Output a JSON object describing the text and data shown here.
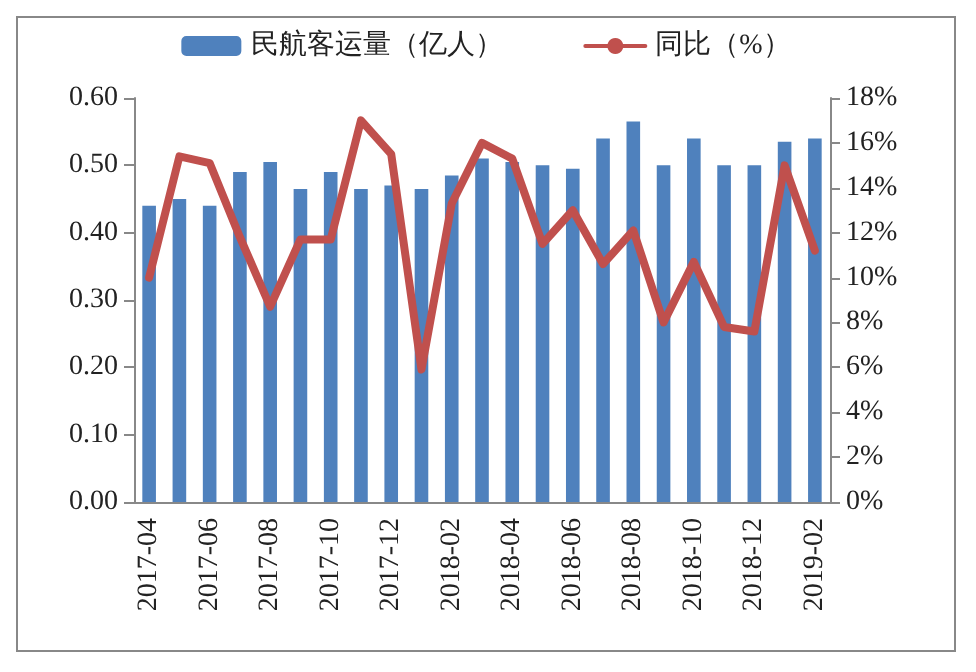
{
  "chart_data": {
    "type": "bar",
    "categories": [
      "2017-04",
      null,
      "2017-06",
      null,
      "2017-08",
      null,
      "2017-10",
      null,
      "2017-12",
      null,
      "2018-02",
      null,
      "2018-04",
      null,
      "2018-06",
      null,
      "2018-08",
      null,
      "2018-10",
      null,
      "2018-12",
      null,
      "2019-02"
    ],
    "series": [
      {
        "name": "民航客运量（亿人）",
        "color": "#4f81bd",
        "values": [
          0.44,
          0.45,
          0.44,
          0.49,
          0.505,
          0.465,
          0.49,
          0.465,
          0.47,
          0.465,
          0.485,
          0.51,
          0.505,
          0.5,
          0.495,
          0.54,
          0.565,
          0.5,
          0.54,
          0.5,
          0.5,
          0.535,
          0.54
        ]
      },
      {
        "name": "同比（%）",
        "type": "line",
        "axis": "y2",
        "color": "#c0504d",
        "values": [
          10.0,
          15.4,
          15.1,
          11.8,
          8.7,
          11.7,
          11.7,
          17.0,
          15.5,
          5.9,
          13.3,
          16.0,
          15.3,
          11.5,
          13.0,
          10.6,
          12.1,
          8.0,
          10.7,
          7.8,
          7.6,
          15.0,
          11.2
        ]
      }
    ],
    "ylim": [
      0,
      0.6
    ],
    "yticks": [
      {
        "value": 0,
        "label": "0.00"
      },
      {
        "value": 0.1,
        "label": "0.10"
      },
      {
        "value": 0.2,
        "label": "0.20"
      },
      {
        "value": 0.3,
        "label": "0.30"
      },
      {
        "value": 0.4,
        "label": "0.40"
      },
      {
        "value": 0.5,
        "label": "0.50"
      },
      {
        "value": 0.6,
        "label": "0.60"
      }
    ],
    "y2lim": [
      0,
      18
    ],
    "y2ticks": [
      {
        "value": 0,
        "label": "0%"
      },
      {
        "value": 2,
        "label": "2%"
      },
      {
        "value": 4,
        "label": "4%"
      },
      {
        "value": 6,
        "label": "6%"
      },
      {
        "value": 8,
        "label": "8%"
      },
      {
        "value": 10,
        "label": "10%"
      },
      {
        "value": 12,
        "label": "12%"
      },
      {
        "value": 14,
        "label": "14%"
      },
      {
        "value": 16,
        "label": "16%"
      },
      {
        "value": 18,
        "label": "18%"
      }
    ],
    "grid": false,
    "legend": "top",
    "marker": "none",
    "line_style": "solid"
  }
}
